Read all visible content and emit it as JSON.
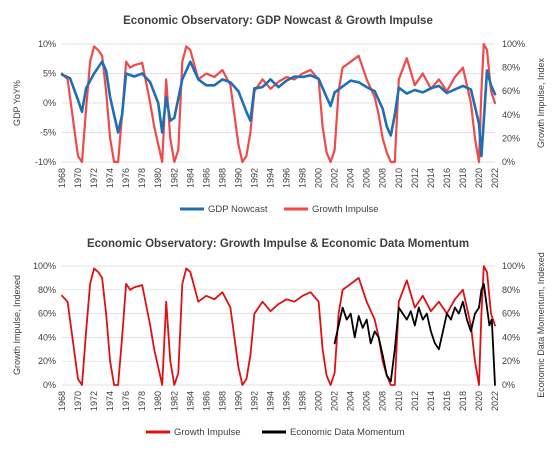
{
  "chart_data": [
    {
      "type": "line",
      "title": "Economic Observatory: GDP Nowcast & Growth Impulse",
      "ylabel": "GDP YoY%",
      "y2label": "Growth Impulse, Index",
      "ylim": [
        -10,
        10
      ],
      "y2lim": [
        0,
        100
      ],
      "yticks": [
        "10%",
        "5%",
        "0%",
        "-5%",
        "-10%"
      ],
      "y2ticks": [
        "100%",
        "80%",
        "60%",
        "40%",
        "20%",
        "0%"
      ],
      "xticks": [
        "1968",
        "1970",
        "1972",
        "1974",
        "1976",
        "1978",
        "1980",
        "1982",
        "1984",
        "1986",
        "1988",
        "1990",
        "1992",
        "1994",
        "1996",
        "1998",
        "2000",
        "2002",
        "2004",
        "2006",
        "2008",
        "2010",
        "2012",
        "2014",
        "2016",
        "2018",
        "2020",
        "2022"
      ],
      "legend_position": "bottom",
      "series": [
        {
          "name": "GDP Nowcast",
          "axis": "left",
          "color": "#1f6fb4",
          "x": [
            1968,
            1969,
            1970,
            1970.5,
            1971,
            1972,
            1973,
            1973.5,
            1974,
            1974.5,
            1975,
            1975.5,
            1976,
            1977,
            1978,
            1979,
            1980,
            1980.5,
            1981,
            1981.5,
            1982,
            1983,
            1984,
            1985,
            1986,
            1987,
            1988,
            1989,
            1990,
            1991,
            1991.5,
            1992,
            1993,
            1994,
            1995,
            1996,
            1997,
            1998,
            1999,
            2000,
            2001,
            2001.5,
            2002,
            2003,
            2004,
            2005,
            2006,
            2007,
            2008,
            2008.5,
            2009,
            2009.5,
            2010,
            2011,
            2012,
            2013,
            2014,
            2015,
            2016,
            2017,
            2018,
            2019,
            2020,
            2020.3,
            2020.6,
            2021,
            2021.5,
            2022
          ],
          "values": [
            4.8,
            4.2,
            0.5,
            -1.5,
            2.5,
            5.0,
            7.0,
            5.5,
            1.0,
            -2.0,
            -5.0,
            -2.0,
            5.0,
            4.5,
            5.0,
            3.5,
            0.0,
            -5.0,
            1.0,
            -3.0,
            -2.5,
            4.0,
            7.0,
            4.0,
            3.0,
            3.0,
            4.0,
            3.5,
            2.0,
            -1.5,
            -3.0,
            2.5,
            2.7,
            4.0,
            2.7,
            3.8,
            4.5,
            4.4,
            4.7,
            4.1,
            1.0,
            -0.5,
            1.8,
            2.8,
            3.8,
            3.5,
            2.7,
            2.0,
            -1.0,
            -4.0,
            -5.5,
            -2.0,
            2.6,
            1.6,
            2.2,
            1.8,
            2.5,
            2.9,
            1.7,
            2.3,
            2.9,
            2.3,
            -3.5,
            -9.0,
            -3.0,
            5.5,
            3.0,
            1.5
          ]
        },
        {
          "name": "Growth Impulse",
          "axis": "right",
          "color": "#f04a4a",
          "x": [
            1968,
            1968.7,
            1969.3,
            1970,
            1970.5,
            1971,
            1971.5,
            1972,
            1972.5,
            1973,
            1973.5,
            1974,
            1974.5,
            1975,
            1975.5,
            1976,
            1976.5,
            1977,
            1978,
            1979,
            1979.5,
            1980,
            1980.5,
            1981,
            1981.5,
            1982,
            1982.5,
            1983,
            1983.5,
            1984,
            1985,
            1986,
            1987,
            1988,
            1989,
            1989.5,
            1990,
            1990.5,
            1991,
            1991.5,
            1992,
            1993,
            1994,
            1995,
            1996,
            1997,
            1998,
            1999,
            2000,
            2000.5,
            2001,
            2001.5,
            2002,
            2002.5,
            2003,
            2004,
            2005,
            2006,
            2007,
            2007.5,
            2008,
            2008.5,
            2009,
            2009.5,
            2010,
            2011,
            2012,
            2013,
            2014,
            2015,
            2016,
            2017,
            2018,
            2019,
            2019.5,
            2020,
            2020.3,
            2020.6,
            2021,
            2021.5,
            2022
          ],
          "values": [
            75,
            70,
            40,
            5,
            0,
            45,
            85,
            98,
            95,
            90,
            60,
            20,
            0,
            0,
            40,
            85,
            80,
            82,
            84,
            50,
            30,
            15,
            0,
            70,
            20,
            0,
            10,
            85,
            98,
            95,
            70,
            75,
            72,
            78,
            65,
            40,
            15,
            0,
            5,
            25,
            60,
            70,
            62,
            68,
            72,
            70,
            75,
            78,
            70,
            30,
            8,
            0,
            10,
            60,
            80,
            85,
            90,
            70,
            55,
            40,
            20,
            8,
            0,
            0,
            70,
            88,
            65,
            75,
            62,
            70,
            60,
            72,
            80,
            50,
            20,
            0,
            60,
            100,
            95,
            60,
            50
          ]
        }
      ]
    },
    {
      "type": "line",
      "title": "Economic Observatory: Growth Impulse & Economic Data Momentum",
      "ylabel": "Growth Impulse, Indexed",
      "y2label": "Economic Data Momentum, Indexed",
      "ylim": [
        0,
        100
      ],
      "y2lim": [
        0,
        100
      ],
      "yticks": [
        "100%",
        "80%",
        "60%",
        "40%",
        "20%",
        "0%"
      ],
      "y2ticks": [
        "100%",
        "80%",
        "60%",
        "40%",
        "20%",
        "0%"
      ],
      "xticks": [
        "1968",
        "1970",
        "1972",
        "1974",
        "1976",
        "1978",
        "1980",
        "1982",
        "1984",
        "1986",
        "1988",
        "1990",
        "1992",
        "1994",
        "1996",
        "1998",
        "2000",
        "2002",
        "2004",
        "2006",
        "2008",
        "2010",
        "2012",
        "2014",
        "2016",
        "2018",
        "2020",
        "2022"
      ],
      "legend_position": "bottom",
      "series": [
        {
          "name": "Growth Impulse",
          "axis": "left",
          "color": "#e01010",
          "x": [
            1968,
            1968.7,
            1969.3,
            1970,
            1970.5,
            1971,
            1971.5,
            1972,
            1972.5,
            1973,
            1973.5,
            1974,
            1974.5,
            1975,
            1975.5,
            1976,
            1976.5,
            1977,
            1978,
            1979,
            1979.5,
            1980,
            1980.5,
            1981,
            1981.5,
            1982,
            1982.5,
            1983,
            1983.5,
            1984,
            1985,
            1986,
            1987,
            1988,
            1989,
            1989.5,
            1990,
            1990.5,
            1991,
            1991.5,
            1992,
            1993,
            1994,
            1995,
            1996,
            1997,
            1998,
            1999,
            2000,
            2000.5,
            2001,
            2001.5,
            2002,
            2002.5,
            2003,
            2004,
            2005,
            2006,
            2007,
            2007.5,
            2008,
            2008.5,
            2009,
            2009.5,
            2010,
            2011,
            2012,
            2013,
            2014,
            2015,
            2016,
            2017,
            2018,
            2019,
            2019.5,
            2020,
            2020.3,
            2020.6,
            2021,
            2021.5,
            2022
          ],
          "values": [
            75,
            70,
            40,
            5,
            0,
            45,
            85,
            98,
            95,
            90,
            60,
            20,
            0,
            0,
            40,
            85,
            80,
            82,
            84,
            50,
            30,
            15,
            0,
            70,
            20,
            0,
            10,
            85,
            98,
            95,
            70,
            75,
            72,
            78,
            65,
            40,
            15,
            0,
            5,
            25,
            60,
            70,
            62,
            68,
            72,
            70,
            75,
            78,
            70,
            30,
            8,
            0,
            10,
            60,
            80,
            85,
            90,
            70,
            55,
            40,
            20,
            8,
            0,
            0,
            70,
            88,
            65,
            75,
            62,
            70,
            60,
            72,
            80,
            50,
            20,
            0,
            60,
            100,
            95,
            60,
            50
          ]
        },
        {
          "name": "Economic Data Momentum",
          "axis": "right",
          "color": "#000000",
          "x": [
            2002,
            2002.5,
            2003,
            2003.5,
            2004,
            2004.5,
            2005,
            2005.5,
            2006,
            2006.5,
            2007,
            2007.5,
            2008,
            2008.5,
            2009,
            2009.5,
            2010,
            2010.5,
            2011,
            2011.5,
            2012,
            2012.5,
            2013,
            2013.5,
            2014,
            2014.5,
            2015,
            2015.5,
            2016,
            2016.5,
            2017,
            2017.5,
            2018,
            2018.5,
            2019,
            2019.5,
            2020,
            2020.3,
            2020.6,
            2021,
            2021.3,
            2021.6,
            2022
          ],
          "values": [
            35,
            50,
            65,
            55,
            60,
            40,
            58,
            48,
            55,
            35,
            45,
            40,
            25,
            8,
            3,
            30,
            65,
            60,
            55,
            62,
            50,
            65,
            55,
            60,
            45,
            35,
            30,
            45,
            60,
            55,
            65,
            60,
            70,
            55,
            45,
            60,
            65,
            80,
            85,
            65,
            50,
            55,
            0
          ]
        }
      ]
    }
  ],
  "legend_labels": {
    "chart1_series1": "GDP Nowcast",
    "chart1_series2": "Growth Impulse",
    "chart2_series1": "Growth Impulse",
    "chart2_series2": "Economic Data Momentum"
  }
}
